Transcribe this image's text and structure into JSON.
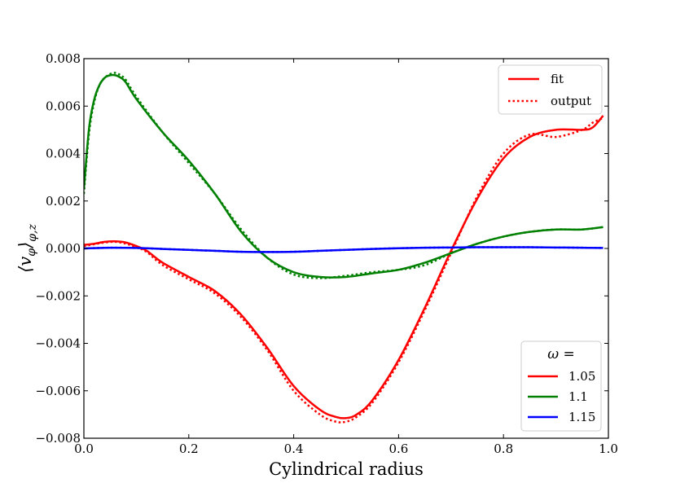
{
  "chart_data": {
    "type": "line",
    "title": "",
    "xlabel": "Cylindrical radius",
    "ylabel": "⟨v_φ⟩_{φ,z}",
    "ylabel_parts": {
      "base": "⟨v",
      "sub_phi": "φ",
      "close": "⟩",
      "sub_outer": "φ,z"
    },
    "xlim": [
      0.0,
      1.0
    ],
    "ylim": [
      -0.008,
      0.008
    ],
    "x_ticks": [
      0.0,
      0.2,
      0.4,
      0.6,
      0.8,
      1.0
    ],
    "x_tick_labels": [
      "0.0",
      "0.2",
      "0.4",
      "0.6",
      "0.8",
      "1.0"
    ],
    "y_ticks": [
      -0.008,
      -0.006,
      -0.004,
      -0.002,
      0.0,
      0.002,
      0.004,
      0.006,
      0.008
    ],
    "y_tick_labels": [
      "−0.008",
      "−0.006",
      "−0.004",
      "−0.002",
      "0.000",
      "0.002",
      "0.004",
      "0.006",
      "0.008"
    ],
    "style_legend": {
      "location": "top-right",
      "entries": [
        {
          "label": "fit",
          "style": "solid",
          "color": "#ff0000"
        },
        {
          "label": "output",
          "style": "dotted",
          "color": "#ff0000"
        }
      ]
    },
    "omega_legend": {
      "location": "bottom-right",
      "title": "ω =",
      "entries": [
        {
          "label": "1.05",
          "color": "#ff0000"
        },
        {
          "label": "1.1",
          "color": "#008000"
        },
        {
          "label": "1.15",
          "color": "#0000ff"
        }
      ]
    },
    "series": [
      {
        "name": "1.05 fit",
        "omega": "1.05",
        "style": "solid",
        "color": "#ff0000",
        "x": [
          0.0,
          0.02,
          0.04,
          0.06,
          0.08,
          0.1,
          0.12,
          0.15,
          0.2,
          0.25,
          0.3,
          0.35,
          0.4,
          0.45,
          0.48,
          0.5,
          0.52,
          0.55,
          0.6,
          0.65,
          0.7,
          0.75,
          0.8,
          0.85,
          0.9,
          0.95,
          0.97,
          0.99
        ],
        "y": [
          0.00015,
          0.0002,
          0.00028,
          0.0003,
          0.00025,
          0.0001,
          -0.0001,
          -0.0006,
          -0.0012,
          -0.0018,
          -0.0028,
          -0.0042,
          -0.0058,
          -0.0068,
          -0.0071,
          -0.00715,
          -0.007,
          -0.0064,
          -0.0047,
          -0.0025,
          -0.0001,
          0.0021,
          0.0038,
          0.0047,
          0.005,
          0.005,
          0.0051,
          0.0056
        ]
      },
      {
        "name": "1.05 output",
        "omega": "1.05",
        "style": "dotted",
        "color": "#ff0000",
        "x": [
          0.0,
          0.02,
          0.04,
          0.06,
          0.08,
          0.1,
          0.12,
          0.15,
          0.2,
          0.25,
          0.3,
          0.35,
          0.4,
          0.45,
          0.48,
          0.5,
          0.52,
          0.55,
          0.6,
          0.65,
          0.7,
          0.75,
          0.8,
          0.85,
          0.9,
          0.95,
          0.97,
          0.99
        ],
        "y": [
          0.0001,
          0.00018,
          0.00025,
          0.00028,
          0.0002,
          5e-05,
          -0.00015,
          -0.0007,
          -0.0013,
          -0.0019,
          -0.0029,
          -0.0043,
          -0.006,
          -0.007,
          -0.0073,
          -0.0073,
          -0.0071,
          -0.0065,
          -0.0048,
          -0.0026,
          -0.0002,
          0.0022,
          0.004,
          0.0048,
          0.0047,
          0.005,
          0.0053,
          0.0055
        ]
      },
      {
        "name": "1.1 fit",
        "omega": "1.1",
        "style": "solid",
        "color": "#008000",
        "x": [
          0.0,
          0.01,
          0.02,
          0.03,
          0.04,
          0.05,
          0.06,
          0.07,
          0.08,
          0.1,
          0.15,
          0.2,
          0.25,
          0.3,
          0.35,
          0.4,
          0.45,
          0.5,
          0.55,
          0.6,
          0.65,
          0.7,
          0.75,
          0.8,
          0.85,
          0.9,
          0.95,
          0.99
        ],
        "y": [
          0.0025,
          0.0051,
          0.0063,
          0.0069,
          0.0072,
          0.0073,
          0.0073,
          0.0072,
          0.007,
          0.0063,
          0.0049,
          0.0037,
          0.0023,
          0.0007,
          -0.0004,
          -0.001,
          -0.0012,
          -0.0012,
          -0.00105,
          -0.0009,
          -0.0006,
          -0.0002,
          0.0002,
          0.0005,
          0.0007,
          0.0008,
          0.0008,
          0.0009
        ]
      },
      {
        "name": "1.1 output",
        "omega": "1.1",
        "style": "dotted",
        "color": "#008000",
        "x": [
          0.0,
          0.01,
          0.02,
          0.03,
          0.04,
          0.05,
          0.06,
          0.07,
          0.08,
          0.1,
          0.15,
          0.2,
          0.25,
          0.3,
          0.35,
          0.4,
          0.45,
          0.5,
          0.55,
          0.6,
          0.65,
          0.7,
          0.75,
          0.8,
          0.85,
          0.9,
          0.95,
          0.99
        ],
        "y": [
          0.0023,
          0.0049,
          0.0062,
          0.0069,
          0.0072,
          0.00735,
          0.0074,
          0.0073,
          0.0071,
          0.0064,
          0.0049,
          0.0036,
          0.0023,
          0.0008,
          -0.0004,
          -0.0011,
          -0.00125,
          -0.00115,
          -0.001,
          -0.0009,
          -0.0007,
          -0.0002,
          0.0002,
          0.0005,
          0.0007,
          0.0008,
          0.0008,
          0.0009
        ]
      },
      {
        "name": "1.15 fit",
        "omega": "1.15",
        "style": "solid",
        "color": "#0000ff",
        "x": [
          0.0,
          0.05,
          0.1,
          0.15,
          0.2,
          0.25,
          0.3,
          0.35,
          0.4,
          0.45,
          0.5,
          0.55,
          0.6,
          0.65,
          0.7,
          0.75,
          0.8,
          0.85,
          0.9,
          0.95,
          0.99
        ],
        "y": [
          0.0,
          3e-05,
          2e-05,
          -2e-05,
          -6e-05,
          -0.0001,
          -0.00014,
          -0.00015,
          -0.00014,
          -0.0001,
          -6e-05,
          -2e-05,
          1e-05,
          3e-05,
          4e-05,
          5e-05,
          5e-05,
          5e-05,
          4e-05,
          3e-05,
          2e-05
        ]
      },
      {
        "name": "1.15 output",
        "omega": "1.15",
        "style": "dotted",
        "color": "#0000ff",
        "x": [
          0.0,
          0.05,
          0.1,
          0.15,
          0.2,
          0.25,
          0.3,
          0.35,
          0.4,
          0.45,
          0.5,
          0.55,
          0.6,
          0.65,
          0.7,
          0.75,
          0.8,
          0.85,
          0.9,
          0.95,
          0.99
        ],
        "y": [
          0.0,
          3e-05,
          2e-05,
          -2e-05,
          -6e-05,
          -0.0001,
          -0.00014,
          -0.00015,
          -0.00014,
          -0.0001,
          -6e-05,
          -2e-05,
          1e-05,
          3e-05,
          4e-05,
          5e-05,
          5e-05,
          5e-05,
          4e-05,
          3e-05,
          2e-05
        ]
      }
    ]
  }
}
